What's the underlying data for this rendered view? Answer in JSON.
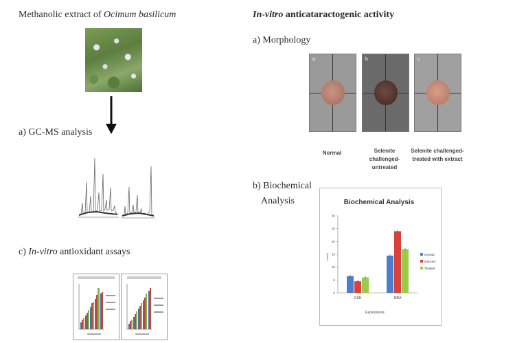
{
  "left": {
    "title_prefix": "Methanolic extract of ",
    "title_species": "Ocimum basilicum",
    "gcms_label": "a) GC-MS analysis",
    "assay_prefix": "c) ",
    "assay_invitro": "In-vitro",
    "assay_suffix": " antioxidant assays"
  },
  "right": {
    "title_invitro": "In-vitro",
    "title_rest": " anticataractogenic activity",
    "morphology_label": "a) Morphology",
    "lens_images": [
      {
        "corner": "a",
        "caption": "Normal",
        "disc_color": "#b07e70"
      },
      {
        "corner": "b",
        "caption": "Selenite challenged- untreated",
        "disc_color": "#5a3a33"
      },
      {
        "corner": "c",
        "caption": "Selenite challenged- treated with extract",
        "disc_color": "#c08a74"
      }
    ],
    "biochem_label_line1": "b) Biochemical",
    "biochem_label_line2": "Analysis"
  },
  "chart_data": {
    "type": "bar",
    "title": "Biochemical Analysis",
    "xlabel": "Experiments",
    "ylabel": "Levels",
    "categories": [
      "GSH",
      "MDA"
    ],
    "ylim": [
      0,
      30
    ],
    "yticks": [
      0,
      5,
      10,
      15,
      20,
      25,
      30
    ],
    "series": [
      {
        "name": "Normal",
        "color": "#4a7fd0",
        "values": [
          6.5,
          14.5
        ]
      },
      {
        "name": "Induced",
        "color": "#d9413c",
        "values": [
          4.5,
          24
        ]
      },
      {
        "name": "Treated",
        "color": "#9acb4a",
        "values": [
          6,
          17
        ]
      }
    ],
    "legend_position": "right"
  }
}
